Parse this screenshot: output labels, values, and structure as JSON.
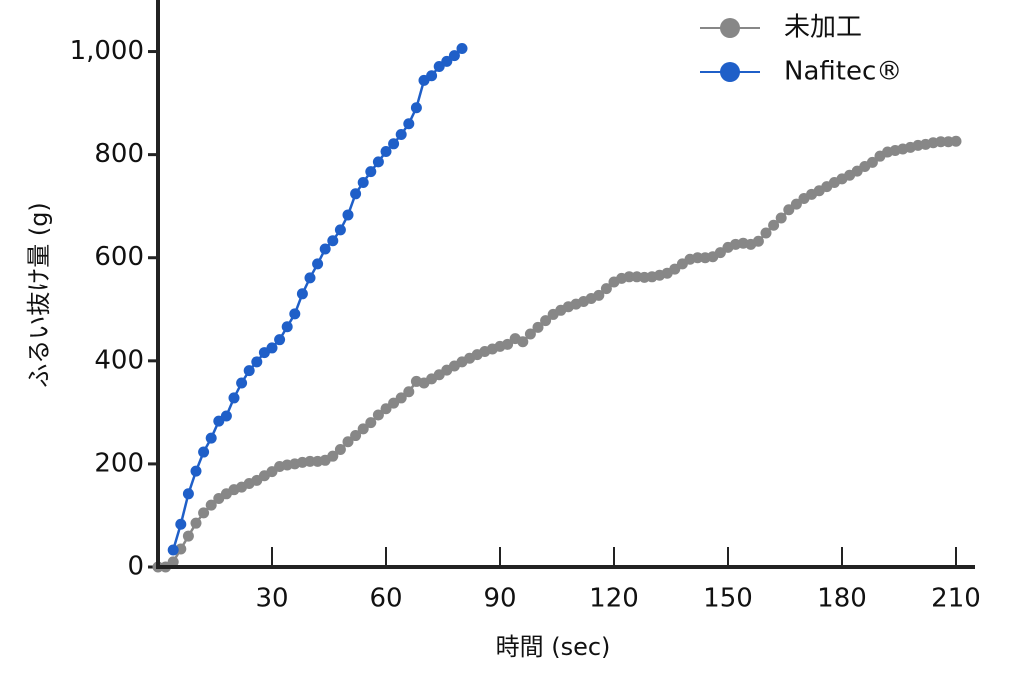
{
  "chart_data": {
    "type": "line",
    "xlabel": "時間 (sec)",
    "ylabel": "ふるい抜け量 (g)",
    "xlim": [
      0,
      215
    ],
    "ylim": [
      0,
      1100
    ],
    "xticks": [
      30,
      60,
      90,
      120,
      150,
      180,
      210
    ],
    "yticks": [
      0,
      200,
      400,
      600,
      800,
      {
        "value": 1000,
        "label": "1,000"
      }
    ],
    "legend": "top-right",
    "series": [
      {
        "name": "未加工",
        "color": "#878787",
        "x": [
          0,
          2,
          4,
          6,
          8,
          10,
          12,
          14,
          16,
          18,
          20,
          22,
          24,
          26,
          28,
          30,
          32,
          34,
          36,
          38,
          40,
          42,
          44,
          46,
          48,
          50,
          52,
          54,
          56,
          58,
          60,
          62,
          64,
          66,
          68,
          70,
          72,
          74,
          76,
          78,
          80,
          82,
          84,
          86,
          88,
          90,
          92,
          94,
          96,
          98,
          100,
          102,
          104,
          106,
          108,
          110,
          112,
          114,
          116,
          118,
          120,
          122,
          124,
          126,
          128,
          130,
          132,
          134,
          136,
          138,
          140,
          142,
          144,
          146,
          148,
          150,
          152,
          154,
          156,
          158,
          160,
          162,
          164,
          166,
          168,
          170,
          172,
          174,
          176,
          178,
          180,
          182,
          184,
          186,
          188,
          190,
          192,
          194,
          196,
          198,
          200,
          202,
          204,
          206,
          208,
          210
        ],
        "values": [
          0,
          0,
          10,
          35,
          60,
          85,
          105,
          120,
          133,
          142,
          150,
          155,
          162,
          168,
          177,
          185,
          195,
          198,
          200,
          203,
          205,
          205,
          207,
          215,
          228,
          243,
          255,
          268,
          280,
          295,
          307,
          318,
          328,
          340,
          360,
          357,
          365,
          373,
          382,
          390,
          398,
          405,
          412,
          418,
          423,
          428,
          432,
          443,
          437,
          452,
          465,
          478,
          490,
          498,
          505,
          510,
          515,
          521,
          527,
          540,
          553,
          560,
          563,
          563,
          562,
          563,
          566,
          570,
          578,
          588,
          597,
          600,
          600,
          602,
          610,
          620,
          626,
          628,
          626,
          632,
          648,
          663,
          677,
          693,
          704,
          715,
          723,
          730,
          738,
          746,
          753,
          760,
          768,
          777,
          785,
          797,
          805,
          808,
          811,
          814,
          818,
          820,
          823,
          825,
          825,
          826
        ]
      },
      {
        "name": "Nafitec®",
        "color": "#1f5fc8",
        "x": [
          4,
          6,
          8,
          10,
          12,
          14,
          16,
          18,
          20,
          22,
          24,
          26,
          28,
          30,
          32,
          34,
          36,
          38,
          40,
          42,
          44,
          46,
          48,
          50,
          52,
          54,
          56,
          58,
          60,
          62,
          64,
          66,
          68,
          70,
          72,
          74,
          76,
          78,
          80
        ],
        "values": [
          33,
          83,
          142,
          186,
          223,
          250,
          283,
          293,
          328,
          357,
          381,
          398,
          416,
          425,
          441,
          466,
          491,
          530,
          561,
          588,
          617,
          633,
          654,
          683,
          724,
          746,
          767,
          786,
          806,
          821,
          839,
          860,
          891,
          944,
          953,
          971,
          981,
          992,
          1006
        ]
      }
    ]
  }
}
